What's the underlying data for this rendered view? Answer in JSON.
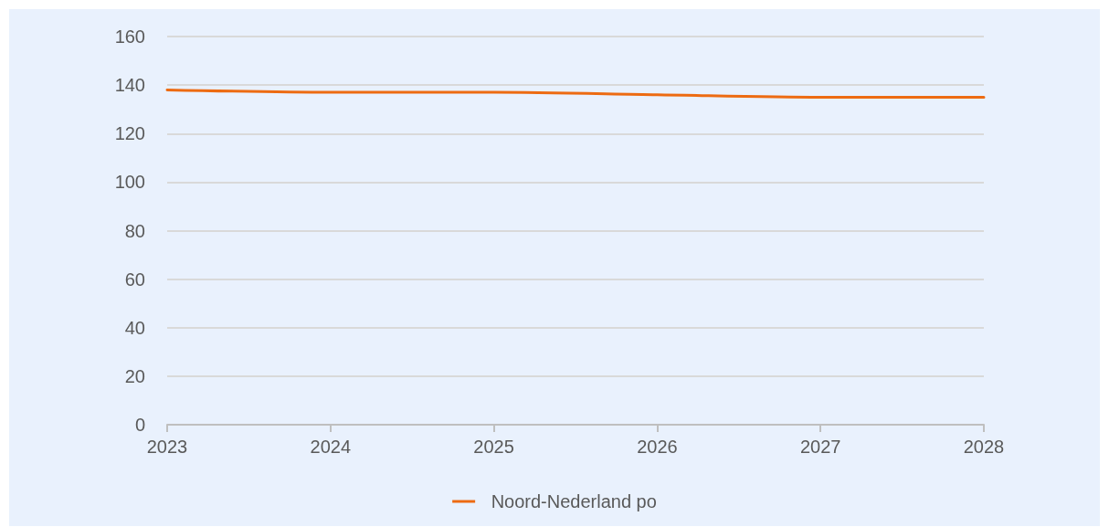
{
  "chart_data": {
    "type": "line",
    "categories": [
      "2023",
      "2024",
      "2025",
      "2026",
      "2027",
      "2028"
    ],
    "series": [
      {
        "name": "Noord-Nederland po",
        "color": "#ed6b12",
        "values": [
          138,
          137,
          137,
          136,
          135,
          135
        ]
      }
    ],
    "ylim": [
      0,
      160
    ],
    "yticks": [
      0,
      20,
      40,
      60,
      80,
      100,
      120,
      140,
      160
    ],
    "grid": "y",
    "legend": "bottom",
    "marker": "none"
  }
}
